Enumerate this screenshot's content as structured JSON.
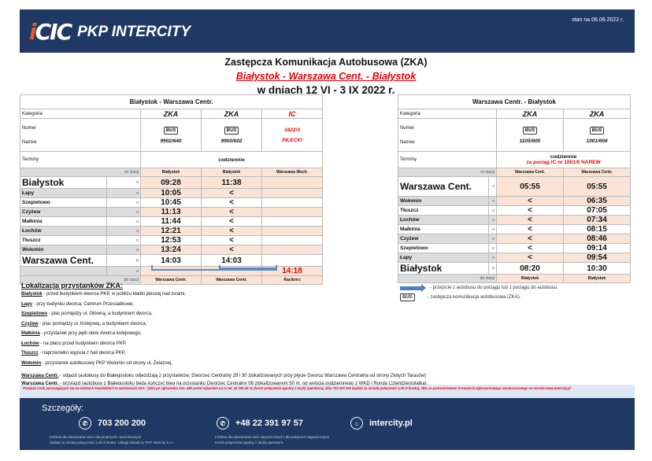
{
  "header": {
    "brand": "PKP INTERCITY",
    "logo_mark": "IC",
    "stan": "stan na 06.06.2022 r."
  },
  "titles": {
    "line1": "Zastępcza Komunikacja Autobusowa (ZKA)",
    "line2": "Białystok - Warszawa Cent. - Białystok",
    "line3": "w dniach 12 VI - 3 IX 2022 r."
  },
  "labels": {
    "kategoria": "Kategoria",
    "numer": "Numer",
    "nazwa": "Nazwa",
    "terminy": "Terminy",
    "ze_stacji": "ze stacji",
    "do_stacji": "do stacji",
    "bus": "BUS"
  },
  "left": {
    "title": "Białystok - Warszawa Centr.",
    "trains": [
      {
        "cat": "ZKA",
        "bus": true,
        "num": "9902/640",
        "name": "",
        "from": "Białystok",
        "to": "Warszawa Centr."
      },
      {
        "cat": "ZKA",
        "bus": true,
        "num": "9900/602",
        "name": "",
        "from": "Białystok",
        "to": "Warszawa Centr."
      },
      {
        "cat": "IC",
        "bus": false,
        "num": "1422/3",
        "name": "PILECKI",
        "from": "Warszawa Wsch.",
        "to": "Racibórz"
      }
    ],
    "terminy": "codziennie",
    "terminy_note": "",
    "stops": [
      {
        "name": "Białystok",
        "big": true,
        "op": "o",
        "times": [
          "09:28",
          "11:38",
          ""
        ]
      },
      {
        "name": "Łapy",
        "op": "o",
        "times": [
          "10:05",
          "<",
          ""
        ]
      },
      {
        "name": "Szepietowo",
        "op": "o",
        "times": [
          "10:45",
          "<",
          ""
        ]
      },
      {
        "name": "Czyżew",
        "op": "o",
        "times": [
          "11:13",
          "<",
          ""
        ]
      },
      {
        "name": "Małkinia",
        "op": "o",
        "times": [
          "11:44",
          "<",
          ""
        ]
      },
      {
        "name": "Łochów",
        "op": "o",
        "times": [
          "12:21",
          "<",
          ""
        ]
      },
      {
        "name": "Tłuszcz",
        "op": "o",
        "times": [
          "12:53",
          "<",
          ""
        ]
      },
      {
        "name": "Wołomin",
        "op": "o",
        "times": [
          "13:24",
          "<",
          ""
        ]
      },
      {
        "name": "Warszawa Cent.",
        "big": true,
        "op": "p",
        "times": [
          "14:03",
          "14:03",
          ""
        ]
      },
      {
        "name": "",
        "op": "o",
        "times": [
          "",
          "",
          "14:18"
        ]
      }
    ]
  },
  "right": {
    "title": "Warszawa Centr. - Białystok",
    "trains": [
      {
        "cat": "ZKA",
        "bus": true,
        "num": "1105/605",
        "name": "",
        "from": "Warszawa Cent.",
        "to": "Białystok"
      },
      {
        "cat": "ZKA",
        "bus": true,
        "num": "1001/606",
        "name": "",
        "from": "Warszawa Centr.",
        "to": "Białystok"
      }
    ],
    "terminy": "codziennie",
    "terminy_note": "za pociąg IC nr 1001/0 NAREW",
    "stops": [
      {
        "name": "Warszawa Cent.",
        "big": true,
        "op": "o",
        "times": [
          "05:55",
          "05:55"
        ]
      },
      {
        "name": "Wołomin",
        "op": "o",
        "times": [
          "<",
          "06:35"
        ]
      },
      {
        "name": "Tłuszcz",
        "op": "o",
        "times": [
          "<",
          "07:05"
        ]
      },
      {
        "name": "Łochów",
        "op": "o",
        "times": [
          "<",
          "07:34"
        ]
      },
      {
        "name": "Małkinia",
        "op": "o",
        "times": [
          "<",
          "08:15"
        ]
      },
      {
        "name": "Czyżew",
        "op": "o",
        "times": [
          "<",
          "08:46"
        ]
      },
      {
        "name": "Szepietowo",
        "op": "o",
        "times": [
          "<",
          "09:14"
        ]
      },
      {
        "name": "Łapy",
        "op": "o",
        "times": [
          "<",
          "09:54"
        ]
      },
      {
        "name": "Białystok",
        "big": true,
        "op": "p",
        "times": [
          "08:20",
          "10:30"
        ]
      }
    ]
  },
  "legend": {
    "transfer": "- przejście z autobusu do pociągu lub z pociągu do autobusu.",
    "zka": "- zastępcza komunikacja autobusowa (ZKA)."
  },
  "stops_info": {
    "heading": "Lokalizacja przystanków ZKA:",
    "items": [
      {
        "name": "Białystok",
        "text": " - przed budynkiem dworca PKP, w pobliżu kładki pieszej nad torami,"
      },
      {
        "name": "Łapy",
        "text": " - przy budynku dworca, Centrum Przesiadkowe,"
      },
      {
        "name": "Szepietowo",
        "text": " - plac pomiędzy ul. Główną, a budynkiem dworca,"
      },
      {
        "name": "Czyżew",
        "text": " - plac pomiędzy ul. Kolejową, a budynkiem dworca,"
      },
      {
        "name": "Małkinia",
        "text": " - przystanek przy pętli obok dworca kolejowego,"
      },
      {
        "name": "Łochów",
        "text": " - na placu przed budynkiem dworca PKP,"
      },
      {
        "name": "Tłuszcz",
        "text": " - naprzeciwko wyjścia z hali dworca PKP,"
      },
      {
        "name": "Wołomin",
        "text": " - przystanek autobusowy PKP Wołomin od strony ul. Żelaznej,"
      },
      {
        "name": "Warszawa Centr.",
        "text": " - odjazd (autobusy do Białegostoku odjeżdżają z przystanków: Dworzec Centralny 29 i 30 zlokalizowanych przy płycie Dworcu Warszawa Centralna od strony Złotych Tarasów)"
      },
      {
        "name": "Warszawa Centr.",
        "text": " - przyjazd (autobusy z Białegostoku będą kończyć bieg na przystanku Dworzec Centralny 06 zlokalizowanym 50 m. od wyjścia podziemnego z WKD i Ronda Czterdziestolatka)."
      }
    ]
  },
  "note": "Przejazd osób poruszających się na wózkach inwalidzkich w autobusach ZKA - tylko po zgłoszeniu min. 48h przed odjazdem na nr tel. 42 205 45 31 (koszt połączenia zgodny z taryfą operatora), albo 703 200 200 (opłata za minutę połączenia 1,29 zł brutto), albo za pośrednictwem formularza zgłoszeniowego zamieszczonego na stronie www.intercity.pl",
  "footer": {
    "heading": "Szczegóły:",
    "contacts": [
      {
        "icon": "phone-icon",
        "value": "703 200 200",
        "desc1": "Infolinia dla abonentów sieci stacjonarnych i komórkowych",
        "desc2": "Opłata za minutę połączenia 1,29 zł brutto. Usługę świadczy PKP Intercity S.A."
      },
      {
        "icon": "phone-icon",
        "value": "+48 22 391 97 57",
        "desc1": "Infolinia dla abonentów sieci zagranicznych i dla połączeń zagranicznych.",
        "desc2": "Koszt połączenia zgodny z taryfą operatora."
      },
      {
        "icon": "web-icon",
        "value": "intercity.pl",
        "desc1": "",
        "desc2": ""
      }
    ]
  },
  "colors": {
    "navy": "#1f3864",
    "accent": "#e8582a",
    "red": "#e00000",
    "pink": "#fbe4d5"
  }
}
